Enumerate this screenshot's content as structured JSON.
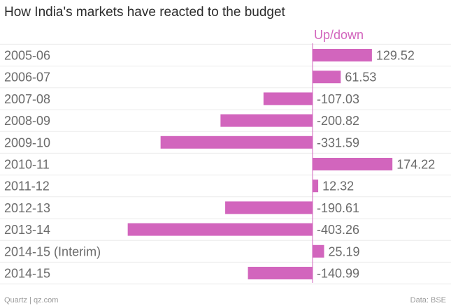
{
  "title": "How India's markets have reacted to the budget",
  "footer": {
    "source_left": "Quartz | qz.com",
    "source_right": "Data: BSE"
  },
  "colors": {
    "bar": "#d265bd",
    "axis": "#d265bd",
    "text": "#6b6b6b",
    "grid": "#ececec"
  },
  "chart_data": {
    "type": "bar",
    "orientation": "horizontal",
    "categories": [
      "2005-06",
      "2006-07",
      "2007-08",
      "2008-09",
      "2009-10",
      "2010-11",
      "2011-12",
      "2012-13",
      "2013-14",
      "2014-15 (Interim)",
      "2014-15"
    ],
    "series": [
      {
        "name": "Up/down",
        "values": [
          129.52,
          61.53,
          -107.03,
          -200.82,
          -331.59,
          174.22,
          12.32,
          -190.61,
          -403.26,
          25.19,
          -140.99
        ]
      }
    ],
    "title": "How India's markets have reacted to the budget",
    "xlabel": "",
    "ylabel": "",
    "grid": true,
    "legend": "top"
  }
}
